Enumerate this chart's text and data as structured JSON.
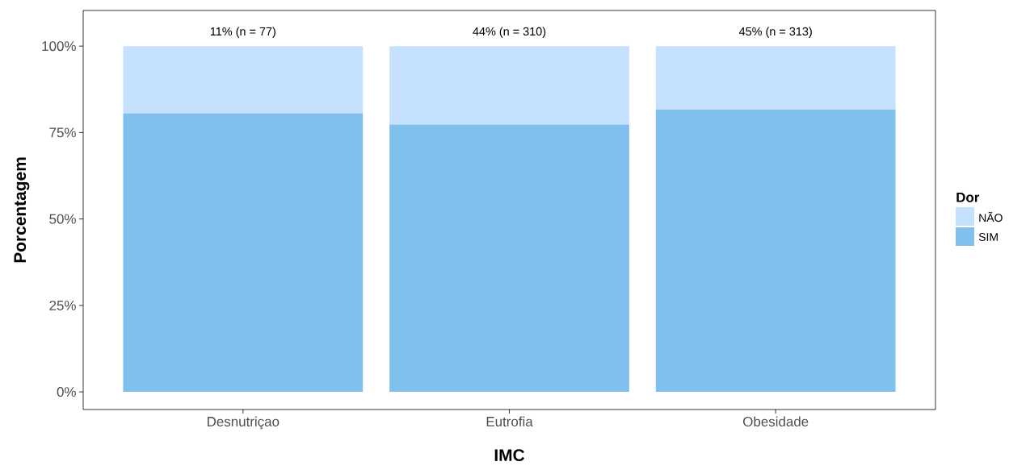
{
  "chart_data": {
    "type": "bar",
    "stacked": true,
    "xlabel": "IMC",
    "ylabel": "Porcentagem",
    "legend_title": "Dor",
    "legend": "right",
    "categories": [
      "Desnutriçao",
      "Eutrofia",
      "Obesidade"
    ],
    "series": [
      {
        "name": "SIM",
        "color": "#7fc0ed",
        "values": [
          80.6,
          77.3,
          81.7
        ]
      },
      {
        "name": "NÃO",
        "color": "#c6e1fd",
        "values": [
          19.4,
          22.7,
          18.3
        ]
      }
    ],
    "ylim": [
      -5.1,
      110.3
    ],
    "yticks": [
      {
        "value": 0,
        "label": "0%"
      },
      {
        "value": 25,
        "label": "25%"
      },
      {
        "value": 50,
        "label": "50%"
      },
      {
        "value": 75,
        "label": "75%"
      },
      {
        "value": 100,
        "label": "100%"
      }
    ],
    "annotations": [
      "11% (n = 77)",
      "44% (n = 310)",
      "45% (n = 313)"
    ]
  }
}
